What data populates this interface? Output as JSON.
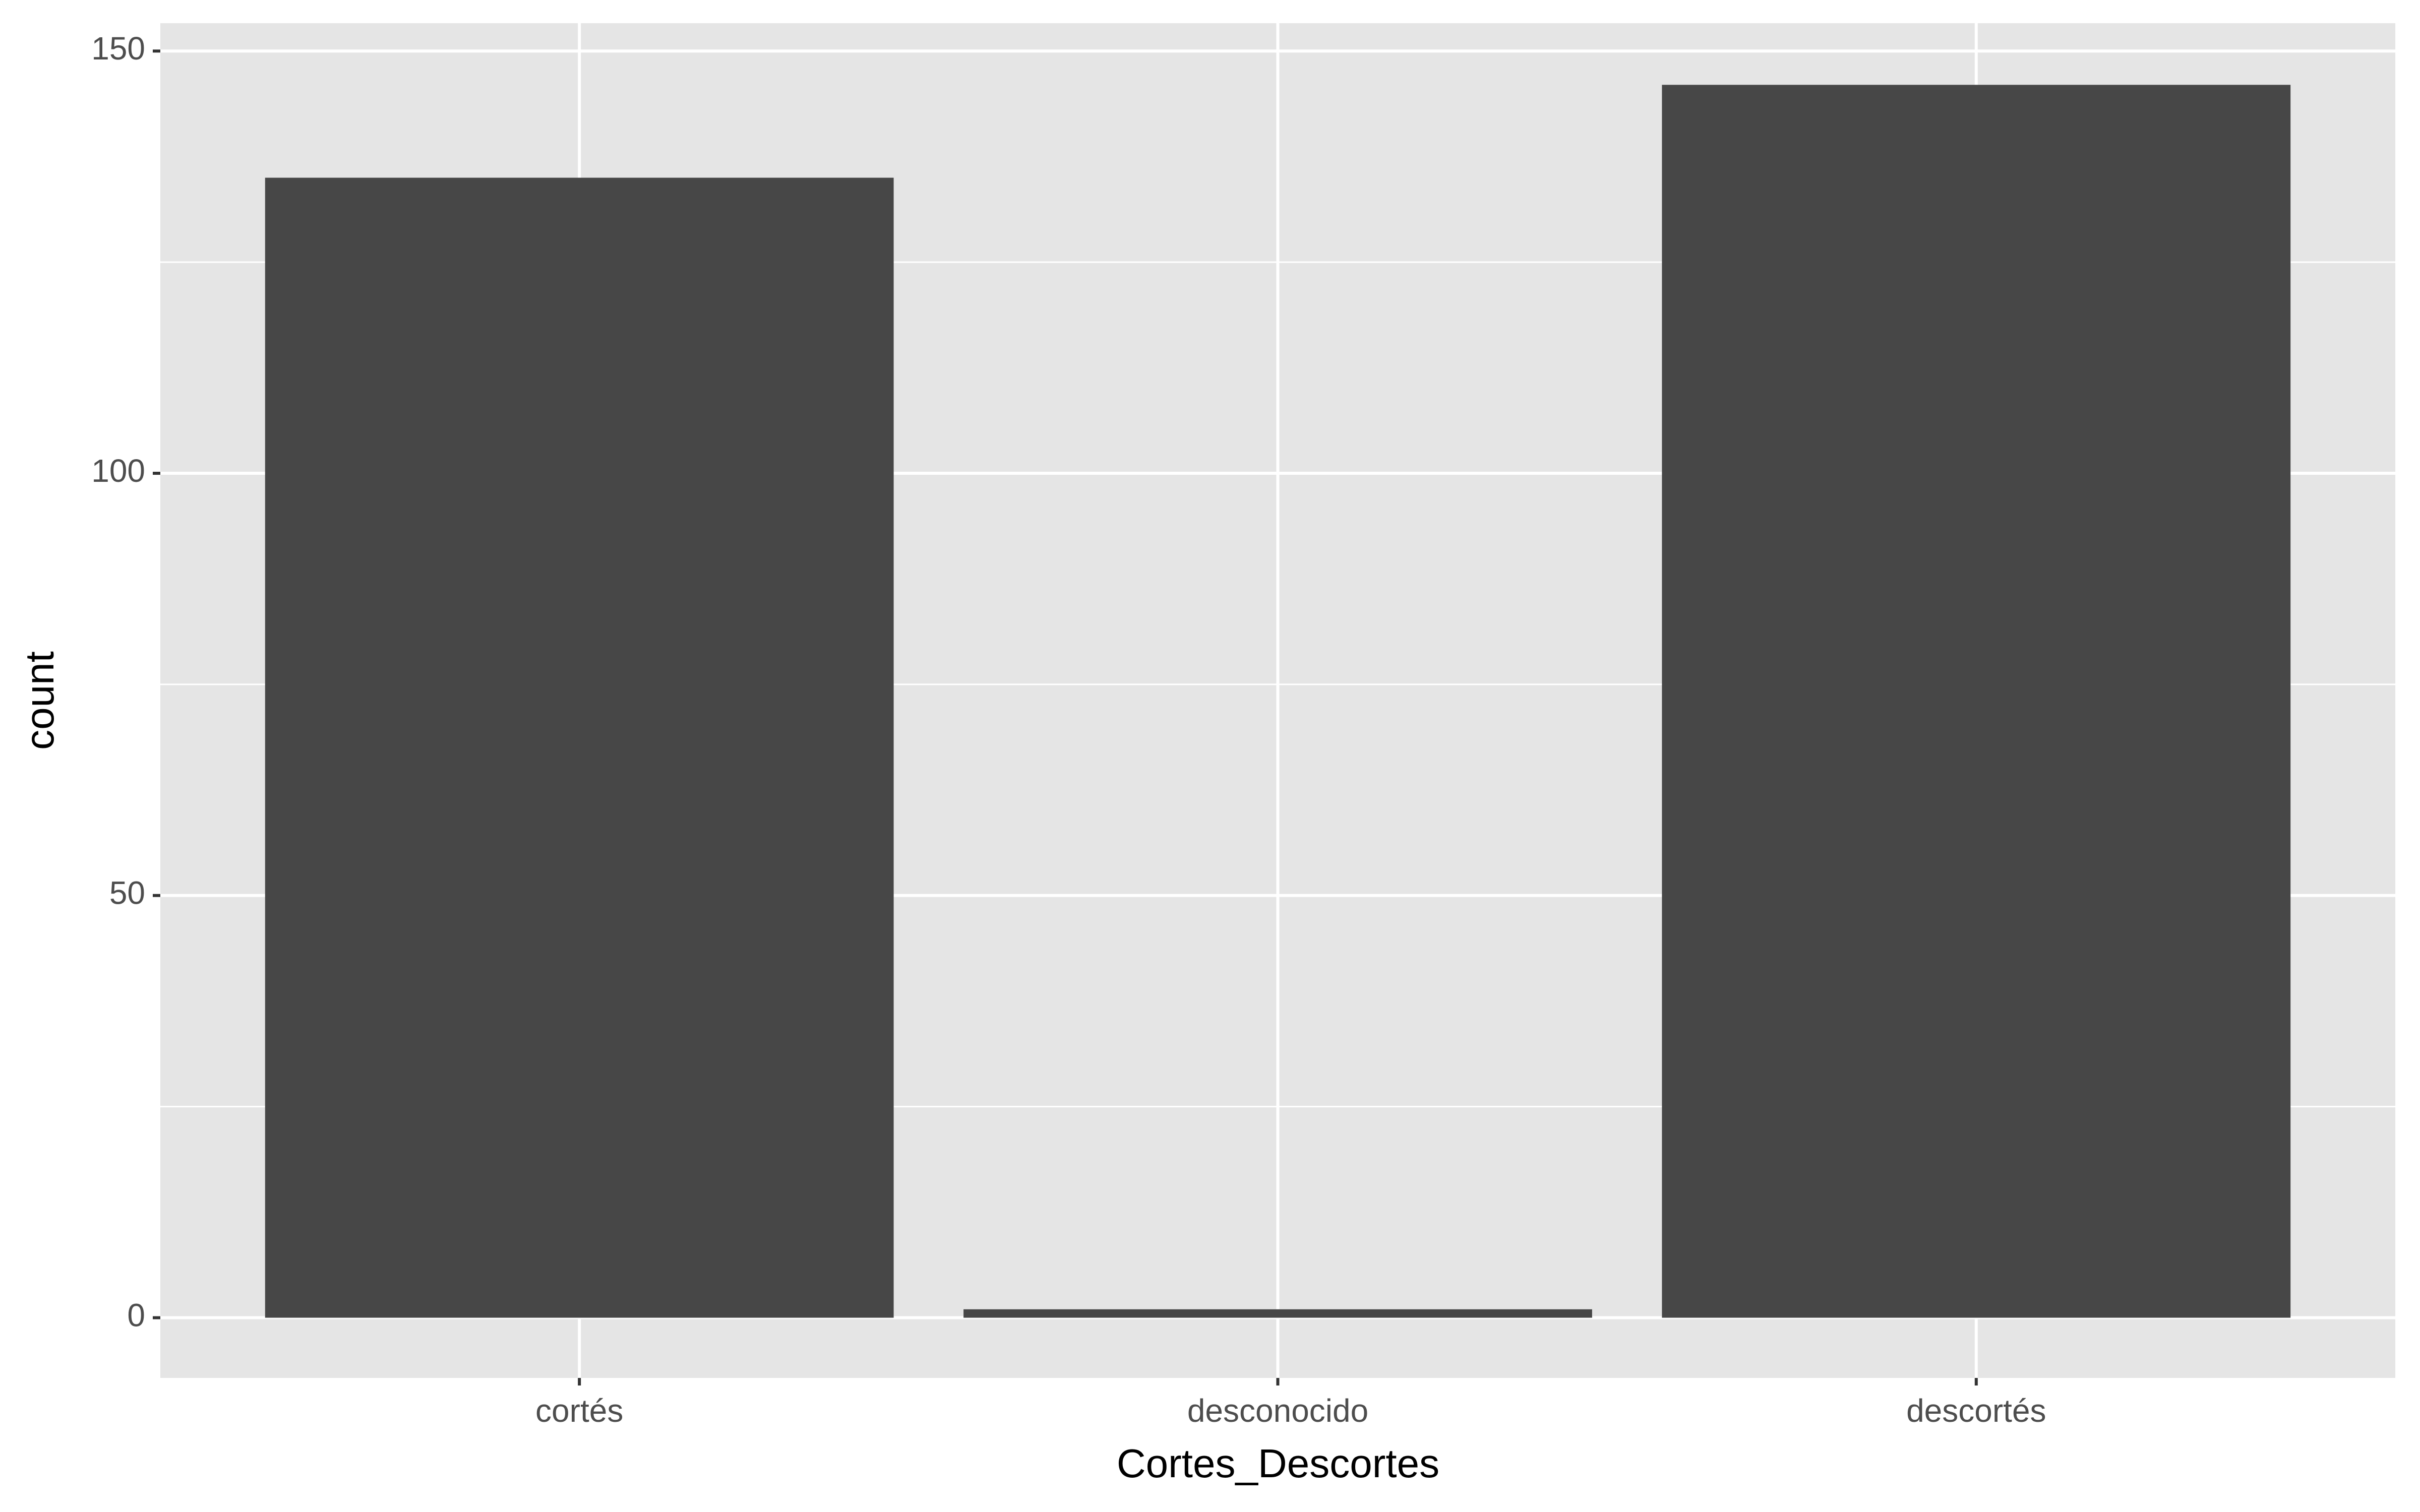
{
  "chart_data": {
    "type": "bar",
    "x_label": "Cortes_Descortes",
    "y_label": "count",
    "categories": [
      "cortés",
      "desconocido",
      "descortés"
    ],
    "values": [
      135,
      1,
      146
    ],
    "color": "#474747",
    "ylim": [
      -7.13,
      153.3
    ],
    "yticks": [
      0,
      50,
      100,
      150
    ],
    "minor_yticks": [
      25,
      75,
      125
    ],
    "grid": true
  }
}
